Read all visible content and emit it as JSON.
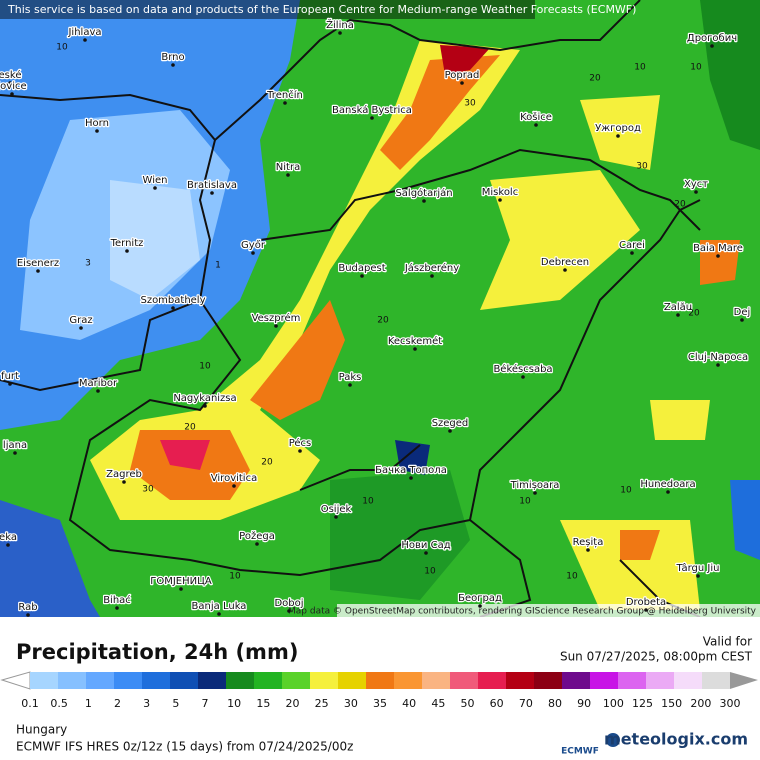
{
  "attribution": "This service is based on data and products of the European Centre for Medium-range Weather Forecasts (ECMWF)",
  "map_credit": "Map data © OpenStreetMap contributors, rendering GIScience Research Group @ Heidelberg University",
  "title": "Precipitation, 24h (mm)",
  "valid_label": "Valid for",
  "valid_time": "Sun 07/27/2025, 08:00pm CEST",
  "legend": {
    "levels": [
      0.1,
      0.5,
      1,
      2,
      3,
      5,
      7,
      10,
      15,
      20,
      25,
      30,
      35,
      40,
      45,
      50,
      60,
      70,
      80,
      90,
      100,
      125,
      150,
      200,
      300
    ],
    "colors": [
      "#a6d5ff",
      "#86c0ff",
      "#64a8ff",
      "#3c8cf5",
      "#1e6edc",
      "#0f4fb4",
      "#0a2a7a",
      "#168a1e",
      "#22b422",
      "#5ad22a",
      "#f5f03c",
      "#e6d200",
      "#f07814",
      "#fa9632",
      "#fab482",
      "#f05a7a",
      "#e61e50",
      "#b40014",
      "#8c0014",
      "#6e0a8c",
      "#c814e6",
      "#dc64f0",
      "#ebaaf5",
      "#f5dcfa",
      "#dcdcdc"
    ]
  },
  "region": "Hungary",
  "model": "ECMWF IFS HRES 0z/12z (15 days) from  07/24/2025/00z",
  "ecmwf_logo": "ECMWF",
  "brand": "meteologix.com",
  "cities": [
    "Jihlava",
    "Brno",
    "Žilina",
    "Poprad",
    "Дрогобич",
    "Trenčín",
    "Banská Bystrica",
    "Košice",
    "Ужгород",
    "Horn",
    "Nitra",
    "Wien",
    "Bratislava",
    "Salgótarján",
    "Miskolc",
    "Хуст",
    "Ternitz",
    "Győr",
    "Carei",
    "Baia Mare",
    "Eisenerz",
    "Budapest",
    "Jászberény",
    "Debrecen",
    "Szombathely",
    "Zalău",
    "Dej",
    "Veszprém",
    "Graz",
    "Kecskemét",
    "Cluj-Napoca",
    "Maribor",
    "Paks",
    "Békéscsaba",
    "Nagykanizsa",
    "Szeged",
    "Pécs",
    "ljana",
    "Бачка Топола",
    "Zagreb",
    "Virovitica",
    "Timișoara",
    "Hunedoara",
    "Osijek",
    "Нови Сад",
    "Požega",
    "Reșița",
    "Târgu Jiu",
    "ГОМЈЕНИЦА",
    "Bihać",
    "Banja Luka",
    "Doboj",
    "Београд",
    "Drobeta",
    "Rab",
    "eské",
    "jovice",
    "furt",
    "eka"
  ],
  "contour_labels": [
    10,
    10,
    10,
    20,
    30,
    30,
    20,
    3,
    1,
    20,
    20,
    10,
    20,
    30,
    20,
    10,
    10,
    10,
    10,
    10,
    10
  ]
}
